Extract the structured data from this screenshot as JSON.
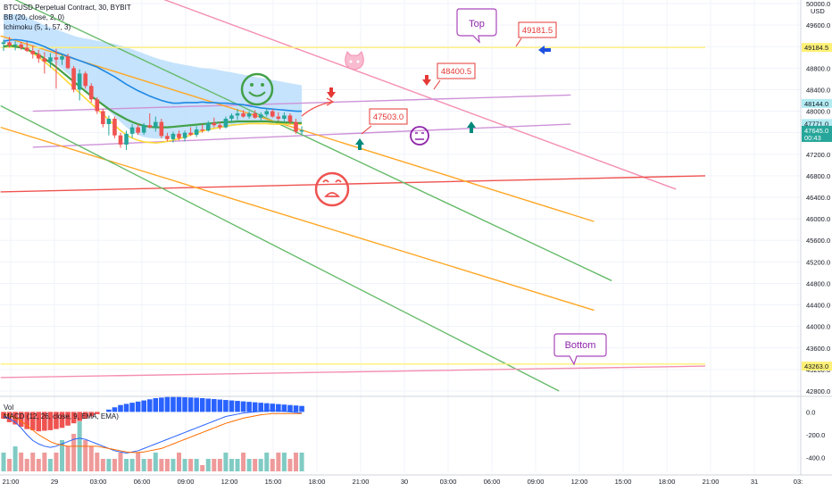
{
  "header": {
    "symbol": "BTCUSD Perpetual Contract, 30, BYBIT",
    "bb": "BB (20, close, 2, 0)",
    "ichimoku": "Ichimoku (5, 1, 57, 3)",
    "vol": "Vol",
    "macd": "MACD (12, 26, close, 9, EMA, EMA)",
    "currency": "USD"
  },
  "chart_data": [
    {
      "type": "line",
      "title": "",
      "price_axis": {
        "min": 42800,
        "max": 50000,
        "step": 400,
        "ticks": [
          "50000.0",
          "49600.0",
          "49200.0",
          "48800.0",
          "48400.0",
          "48000.0",
          "47600.0",
          "47200.0",
          "46800.0",
          "46400.0",
          "46000.0",
          "45600.0",
          "45200.0",
          "44800.0",
          "44400.0",
          "44000.0",
          "43600.0",
          "43200.0",
          "42800.0"
        ]
      },
      "time_axis": {
        "labels": [
          "21:00",
          "29",
          "03:00",
          "06:00",
          "09:00",
          "12:00",
          "15:00",
          "18:00",
          "21:00",
          "30",
          "03:00",
          "06:00",
          "09:00",
          "12:00",
          "15:00",
          "18:00",
          "21:00",
          "31",
          "03:"
        ]
      },
      "price_tags": [
        {
          "value": "49184.5",
          "color": "#fff176",
          "text_color": "#131722"
        },
        {
          "value": "48144.0",
          "color": "#b2ebf2",
          "text_color": "#131722"
        },
        {
          "value": "47771.0",
          "color": "#b2ebf2",
          "text_color": "#131722"
        },
        {
          "value": "47645.0",
          "sub": "00:43",
          "color": "#26a69a",
          "text_color": "#ffffff"
        },
        {
          "value": "43263.0",
          "color": "#fff176",
          "text_color": "#131722"
        }
      ],
      "annotations": {
        "callouts": [
          "Top",
          "Bottom"
        ],
        "price_boxes": [
          "49181.5",
          "48400.5",
          "47503.0"
        ]
      },
      "candles": [
        {
          "o": 49250,
          "h": 49330,
          "l": 49120,
          "c": 49280
        },
        {
          "o": 49280,
          "h": 49380,
          "l": 49180,
          "c": 49220
        },
        {
          "o": 49220,
          "h": 49300,
          "l": 49130,
          "c": 49240
        },
        {
          "o": 49240,
          "h": 49290,
          "l": 49140,
          "c": 49180
        },
        {
          "o": 49180,
          "h": 49290,
          "l": 49100,
          "c": 49120
        },
        {
          "o": 49120,
          "h": 49220,
          "l": 48980,
          "c": 49060
        },
        {
          "o": 49060,
          "h": 49140,
          "l": 48900,
          "c": 48980
        },
        {
          "o": 48980,
          "h": 49100,
          "l": 48700,
          "c": 48920
        },
        {
          "o": 48920,
          "h": 49080,
          "l": 48810,
          "c": 49000
        },
        {
          "o": 49000,
          "h": 49160,
          "l": 48420,
          "c": 48960
        },
        {
          "o": 48960,
          "h": 49060,
          "l": 48860,
          "c": 49020
        },
        {
          "o": 49020,
          "h": 49070,
          "l": 48780,
          "c": 48800
        },
        {
          "o": 48800,
          "h": 48840,
          "l": 48350,
          "c": 48400
        },
        {
          "o": 48400,
          "h": 48780,
          "l": 48200,
          "c": 48700
        },
        {
          "o": 48700,
          "h": 48740,
          "l": 48420,
          "c": 48470
        },
        {
          "o": 48470,
          "h": 48520,
          "l": 48160,
          "c": 48220
        },
        {
          "o": 48220,
          "h": 48260,
          "l": 47950,
          "c": 48000
        },
        {
          "o": 48000,
          "h": 48040,
          "l": 47700,
          "c": 47760
        },
        {
          "o": 47760,
          "h": 47920,
          "l": 47550,
          "c": 47860
        },
        {
          "o": 47860,
          "h": 47900,
          "l": 47500,
          "c": 47550
        },
        {
          "o": 47550,
          "h": 47600,
          "l": 47320,
          "c": 47380
        },
        {
          "o": 47380,
          "h": 47640,
          "l": 47280,
          "c": 47580
        },
        {
          "o": 47580,
          "h": 47760,
          "l": 47500,
          "c": 47700
        },
        {
          "o": 47700,
          "h": 47760,
          "l": 47560,
          "c": 47600
        },
        {
          "o": 47600,
          "h": 47780,
          "l": 47560,
          "c": 47740
        },
        {
          "o": 47740,
          "h": 47960,
          "l": 47680,
          "c": 47700
        },
        {
          "o": 47700,
          "h": 47900,
          "l": 47620,
          "c": 47800
        },
        {
          "o": 47800,
          "h": 47860,
          "l": 47500,
          "c": 47540
        },
        {
          "o": 47540,
          "h": 47600,
          "l": 47440,
          "c": 47480
        },
        {
          "o": 47480,
          "h": 47620,
          "l": 47420,
          "c": 47580
        },
        {
          "o": 47580,
          "h": 47640,
          "l": 47460,
          "c": 47500
        },
        {
          "o": 47500,
          "h": 47640,
          "l": 47440,
          "c": 47600
        },
        {
          "o": 47600,
          "h": 47700,
          "l": 47540,
          "c": 47560
        },
        {
          "o": 47560,
          "h": 47720,
          "l": 47520,
          "c": 47660
        },
        {
          "o": 47660,
          "h": 47760,
          "l": 47600,
          "c": 47640
        },
        {
          "o": 47640,
          "h": 47820,
          "l": 47620,
          "c": 47780
        },
        {
          "o": 47780,
          "h": 47880,
          "l": 47700,
          "c": 47740
        },
        {
          "o": 47740,
          "h": 47800,
          "l": 47660,
          "c": 47700
        },
        {
          "o": 47700,
          "h": 47900,
          "l": 47680,
          "c": 47860
        },
        {
          "o": 47860,
          "h": 47960,
          "l": 47800,
          "c": 47920
        },
        {
          "o": 47920,
          "h": 48040,
          "l": 47840,
          "c": 47960
        },
        {
          "o": 47960,
          "h": 48020,
          "l": 47880,
          "c": 47900
        },
        {
          "o": 47900,
          "h": 48000,
          "l": 47860,
          "c": 47960
        },
        {
          "o": 47960,
          "h": 48020,
          "l": 47860,
          "c": 47880
        },
        {
          "o": 47880,
          "h": 47980,
          "l": 47800,
          "c": 47940
        },
        {
          "o": 47940,
          "h": 48060,
          "l": 47900,
          "c": 48000
        },
        {
          "o": 48000,
          "h": 48040,
          "l": 47880,
          "c": 47900
        },
        {
          "o": 47900,
          "h": 47980,
          "l": 47820,
          "c": 47860
        },
        {
          "o": 47860,
          "h": 47980,
          "l": 47800,
          "c": 47920
        },
        {
          "o": 47920,
          "h": 47960,
          "l": 47760,
          "c": 47800
        },
        {
          "o": 47800,
          "h": 47860,
          "l": 47580,
          "c": 47620
        },
        {
          "o": 47620,
          "h": 47720,
          "l": 47560,
          "c": 47645
        }
      ],
      "bb_upper": [
        49300,
        49320,
        49330,
        49320,
        49300,
        49280,
        49240,
        49200,
        49150,
        49100,
        49060,
        49020,
        48980,
        48940,
        48900,
        48860,
        48820,
        48760,
        48700,
        48640,
        48570,
        48500,
        48440,
        48380,
        48330,
        48280,
        48240,
        48200,
        48170,
        48150,
        48150,
        48160,
        48160,
        48160,
        48170,
        48160,
        48160,
        48150,
        48150,
        48140,
        48130,
        48120,
        48100,
        48080,
        48060,
        48050,
        48040,
        48030,
        48020,
        48010,
        48000,
        48000
      ],
      "bb_lower": [
        49100,
        49080,
        49060,
        49030,
        48990,
        48940,
        48880,
        48820,
        48750,
        48680,
        48600,
        48520,
        48430,
        48340,
        48240,
        48140,
        48040,
        47940,
        47840,
        47740,
        47640,
        47560,
        47500,
        47460,
        47430,
        47420,
        47420,
        47420,
        47430,
        47440,
        47450,
        47460,
        47480,
        47500,
        47510,
        47520,
        47530,
        47540,
        47550,
        47560,
        47570,
        47570,
        47580,
        47580,
        47580,
        47580,
        47580,
        47580,
        47580,
        47580,
        47580,
        47580
      ],
      "conversion_line": [
        49200,
        49220,
        49200,
        49180,
        49150,
        49100,
        49050,
        48980,
        48900,
        48820,
        48730,
        48640,
        48550,
        48460,
        48370,
        48280,
        48200,
        48120,
        48040,
        47970,
        47910,
        47850,
        47800,
        47760,
        47730,
        47710,
        47700,
        47700,
        47700,
        47710,
        47720,
        47730,
        47740,
        47750,
        47760,
        47770,
        47780,
        47790,
        47800,
        47800,
        47810,
        47810,
        47810,
        47810,
        47810,
        47810,
        47800,
        47800,
        47790,
        47790,
        47780,
        47780
      ],
      "ma_line": [
        49210,
        49230,
        49220,
        49200,
        49140,
        49080,
        49000,
        48920,
        48830,
        48740,
        48640,
        48540,
        48440,
        48340,
        48240,
        48140,
        48040,
        47940,
        47840,
        47740,
        47640,
        47560,
        47500,
        47460,
        47430,
        47420,
        47410,
        47420,
        47440,
        47460,
        47490,
        47520,
        47560,
        47600,
        47630,
        47660,
        47680,
        47700,
        47720,
        47740,
        47750,
        47760,
        47770,
        47770,
        47770,
        47770,
        47760,
        47760,
        47760,
        47760,
        47760,
        47760
      ],
      "cloud_top": [
        49800,
        49800,
        49800,
        49800,
        49750,
        49700,
        49650,
        49600,
        49560,
        49520,
        49480,
        49440,
        49400,
        49370,
        49350,
        49330,
        49310,
        49290,
        49270,
        49250,
        49220,
        49190,
        49150,
        49110,
        49070,
        49030,
        48990,
        48960,
        48930,
        48900,
        48880,
        48860,
        48840,
        48820,
        48800,
        48790,
        48780,
        48760,
        48740,
        48720,
        48700,
        48680,
        48660,
        48640,
        48620,
        48600,
        48580,
        48560,
        48540,
        48520,
        48500,
        48480
      ],
      "cloud_bottom": [
        49280,
        49260,
        49240,
        49220,
        49180,
        49140,
        49080,
        49020,
        48950,
        48870,
        48780,
        48690,
        48600,
        48500,
        48400,
        48300,
        48200,
        48100,
        48000,
        47900,
        47800,
        47700,
        47620,
        47560,
        47520,
        47500,
        47490,
        47490,
        47500,
        47520,
        47540,
        47560,
        47580,
        47600,
        47620,
        47640,
        47660,
        47680,
        47700,
        47720,
        47740,
        47760,
        47780,
        47790,
        47800,
        47800,
        47800,
        47800,
        47800,
        47800,
        47800,
        47800
      ],
      "trendlines": [
        {
          "name": "",
          "color": "#f48fb1",
          "p1": [
            -0.5,
            51200
          ],
          "p2": [
            115,
            46550
          ]
        },
        {
          "name": "",
          "color": "#ce93d8",
          "p1": [
            5,
            48000
          ],
          "p2": [
            97,
            48300
          ]
        },
        {
          "name": "",
          "color": "#ce93d8",
          "p1": [
            5,
            47330
          ],
          "p2": [
            97,
            47760
          ]
        },
        {
          "name": "",
          "color": "#ef5350",
          "p1": [
            -0.5,
            46500
          ],
          "p2": [
            120,
            46800
          ]
        },
        {
          "name": "",
          "color": "#66bb6a",
          "p1": [
            -0.5,
            50200
          ],
          "p2": [
            104,
            44850
          ]
        },
        {
          "name": "",
          "color": "#ffa726",
          "p1": [
            -0.5,
            49400
          ],
          "p2": [
            101,
            45950
          ]
        },
        {
          "name": "",
          "color": "#ffa726",
          "p1": [
            -0.5,
            47700
          ],
          "p2": [
            101,
            44300
          ]
        },
        {
          "name": "",
          "color": "#66bb6a",
          "p1": [
            -0.5,
            48100
          ],
          "p2": [
            95,
            42800
          ]
        },
        {
          "name": "",
          "color": "#fff176",
          "p1": [
            -0.5,
            49184.5
          ],
          "p2": [
            120,
            49184.5
          ]
        },
        {
          "name": "",
          "color": "#fff176",
          "p1": [
            -0.5,
            43300
          ],
          "p2": [
            120,
            43300
          ]
        },
        {
          "name": "",
          "color": "#f48fb1",
          "p1": [
            -0.5,
            43050
          ],
          "p2": [
            120,
            43263
          ]
        }
      ],
      "ylabel": "",
      "xlabel": ""
    },
    {
      "type": "bar",
      "title": "",
      "volume_values": [
        3,
        2,
        4,
        3,
        2,
        3,
        2,
        3,
        2,
        3,
        5,
        4,
        6,
        8,
        5,
        4,
        3,
        2,
        2,
        2,
        3,
        2,
        2,
        3,
        2,
        2,
        3,
        2,
        2,
        2,
        3,
        2,
        2,
        2,
        1,
        2,
        2,
        2,
        3,
        2,
        2,
        3,
        2,
        2,
        2,
        3,
        2,
        3,
        3,
        2,
        3,
        3
      ],
      "macd_histogram": [
        -60,
        -90,
        -110,
        -130,
        -150,
        -160,
        -170,
        -165,
        -160,
        -150,
        -140,
        -120,
        -100,
        -80,
        -60,
        -40,
        -20,
        0,
        20,
        40,
        60,
        70,
        80,
        90,
        100,
        110,
        120,
        125,
        130,
        130,
        130,
        128,
        126,
        124,
        120,
        116,
        112,
        108,
        104,
        100,
        96,
        92,
        88,
        84,
        80,
        76,
        72,
        68,
        64,
        60,
        56,
        52
      ],
      "macd_line": [
        -40,
        -60,
        -90,
        -140,
        -200,
        -250,
        -280,
        -300,
        -310,
        -300,
        -280,
        -260,
        -240,
        -230,
        -240,
        -260,
        -280,
        -300,
        -320,
        -340,
        -350,
        -360,
        -350,
        -340,
        -320,
        -300,
        -280,
        -260,
        -240,
        -220,
        -200,
        -180,
        -160,
        -140,
        -120,
        -100,
        -80,
        -60,
        -40,
        -30,
        -20,
        -10,
        -5,
        0,
        5,
        10,
        15,
        10,
        5,
        0,
        -5,
        -10
      ],
      "signal_line": [
        -20,
        -30,
        -50,
        -80,
        -120,
        -160,
        -200,
        -230,
        -260,
        -280,
        -290,
        -300,
        -300,
        -300,
        -300,
        -300,
        -300,
        -310,
        -320,
        -330,
        -340,
        -350,
        -355,
        -355,
        -350,
        -340,
        -330,
        -320,
        -300,
        -280,
        -260,
        -240,
        -220,
        -200,
        -180,
        -160,
        -140,
        -120,
        -100,
        -85,
        -70,
        -55,
        -45,
        -35,
        -25,
        -20,
        -15,
        -15,
        -15,
        -15,
        -15,
        -15
      ],
      "macd_axis": {
        "ticks": [
          "0.0",
          "-200.0",
          "-400.0"
        ]
      }
    }
  ],
  "colors": {
    "bull": "#26a69a",
    "bear": "#ef5350",
    "cloud": "#bbdefb",
    "bb": "#1e88e5",
    "conv": "#fdd835",
    "ma": "#43a047",
    "vol_up": "#80cbc4",
    "vol_dn": "#ef9a9a",
    "hist_up": "#2962ff",
    "hist_dn": "#ef5350"
  }
}
